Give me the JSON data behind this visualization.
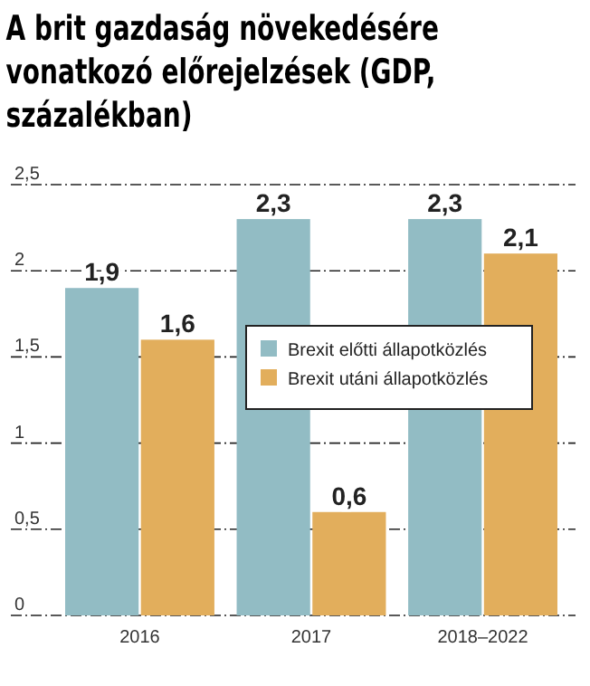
{
  "chart_data": {
    "type": "bar",
    "title": "A brit gazdaság növekedésére vonatkozó előrejelzések (GDP, százalékban)",
    "categories": [
      "2016",
      "2017",
      "2018–2022"
    ],
    "series": [
      {
        "name": "Brexit előtti állapotközlés",
        "color": "#92bcc4",
        "values": [
          1.9,
          2.3,
          2.3
        ],
        "value_labels": [
          "1,9",
          "2,3",
          "2,3"
        ]
      },
      {
        "name": "Brexit utáni állapotközlés",
        "color": "#e2ae5c",
        "values": [
          1.6,
          0.6,
          2.1
        ],
        "value_labels": [
          "1,6",
          "0,6",
          "2,1"
        ]
      }
    ],
    "ylim": [
      0,
      2.5
    ],
    "yticks": [
      {
        "value": 0,
        "label": "0"
      },
      {
        "value": 0.5,
        "label": "0,5"
      },
      {
        "value": 1,
        "label": "1"
      },
      {
        "value": 1.5,
        "label": "1,5"
      },
      {
        "value": 2,
        "label": "2"
      },
      {
        "value": 2.5,
        "label": "2,5"
      }
    ],
    "grid": "y",
    "legend": "right"
  }
}
